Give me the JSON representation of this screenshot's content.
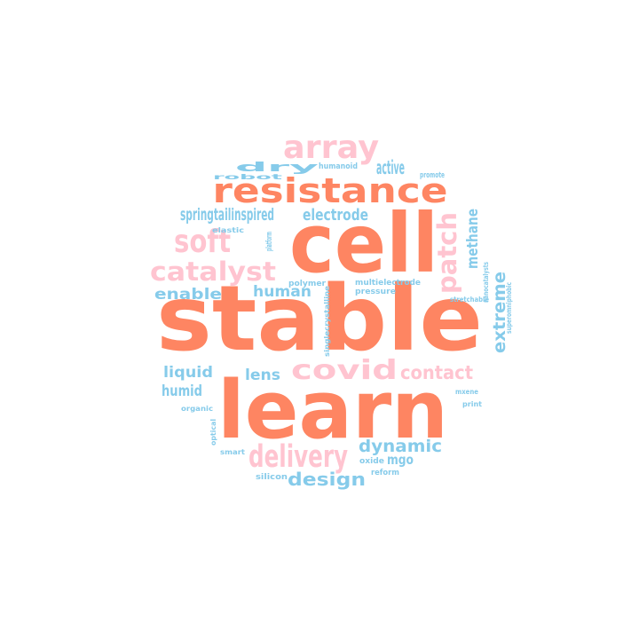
{
  "colors": {
    "orange": "#fe8562",
    "pink": "#ffc4d0",
    "blue": "#86cbea"
  },
  "words": [
    {
      "id": "stable",
      "text": "stable",
      "color": "orange"
    },
    {
      "id": "cell",
      "text": "cell",
      "color": "orange"
    },
    {
      "id": "learn",
      "text": "learn",
      "color": "orange"
    },
    {
      "id": "resistance",
      "text": "resistance",
      "color": "orange"
    },
    {
      "id": "array",
      "text": "array",
      "color": "pink"
    },
    {
      "id": "soft",
      "text": "soft",
      "color": "pink"
    },
    {
      "id": "catalyst",
      "text": "catalyst",
      "color": "pink"
    },
    {
      "id": "covid",
      "text": "covid",
      "color": "pink"
    },
    {
      "id": "contact",
      "text": "contact",
      "color": "pink"
    },
    {
      "id": "delivery",
      "text": "delivery",
      "color": "pink"
    },
    {
      "id": "active",
      "text": "active",
      "color": "pink"
    },
    {
      "id": "dry",
      "text": "dry",
      "color": "blue"
    },
    {
      "id": "humanoid",
      "text": "humanoid",
      "color": "blue"
    },
    {
      "id": "promote",
      "text": "promote",
      "color": "blue"
    },
    {
      "id": "robot",
      "text": "robot",
      "color": "blue"
    },
    {
      "id": "springtailinspired",
      "text": "springtailinspired",
      "color": "blue"
    },
    {
      "id": "electrode",
      "text": "electrode",
      "color": "blue"
    },
    {
      "id": "elastic",
      "text": "elastic",
      "color": "blue"
    },
    {
      "id": "platform",
      "text": "platform",
      "color": "blue"
    },
    {
      "id": "patch",
      "text": "patch",
      "color": "blue"
    },
    {
      "id": "methane",
      "text": "methane",
      "color": "blue"
    },
    {
      "id": "enable",
      "text": "enable",
      "color": "blue"
    },
    {
      "id": "human",
      "text": "human",
      "color": "blue"
    },
    {
      "id": "polymer",
      "text": "polymer",
      "color": "blue"
    },
    {
      "id": "multielectrode",
      "text": "multielectrode",
      "color": "blue"
    },
    {
      "id": "pressure",
      "text": "pressure",
      "color": "blue"
    },
    {
      "id": "singlecrystalline",
      "text": "singlecrystalline",
      "color": "blue"
    },
    {
      "id": "nanocatalysts",
      "text": "nanocatalysts",
      "color": "blue"
    },
    {
      "id": "extreme",
      "text": "extreme",
      "color": "blue"
    },
    {
      "id": "stretchable",
      "text": "stretchable",
      "color": "blue"
    },
    {
      "id": "superomniphobic",
      "text": "superomniphobic",
      "color": "blue"
    },
    {
      "id": "liquid",
      "text": "liquid",
      "color": "blue"
    },
    {
      "id": "lens",
      "text": "lens",
      "color": "blue"
    },
    {
      "id": "humid",
      "text": "humid",
      "color": "blue"
    },
    {
      "id": "organic",
      "text": "organic",
      "color": "blue"
    },
    {
      "id": "mxene",
      "text": "mxene",
      "color": "blue"
    },
    {
      "id": "print",
      "text": "print",
      "color": "blue"
    },
    {
      "id": "optical",
      "text": "optical",
      "color": "blue"
    },
    {
      "id": "dynamic",
      "text": "dynamic",
      "color": "blue"
    },
    {
      "id": "smart",
      "text": "smart",
      "color": "blue"
    },
    {
      "id": "oxide",
      "text": "oxide",
      "color": "blue"
    },
    {
      "id": "mgo",
      "text": "mgo",
      "color": "blue"
    },
    {
      "id": "reform",
      "text": "reform",
      "color": "blue"
    },
    {
      "id": "silicon",
      "text": "silicon",
      "color": "blue"
    },
    {
      "id": "design",
      "text": "design",
      "color": "blue"
    }
  ]
}
